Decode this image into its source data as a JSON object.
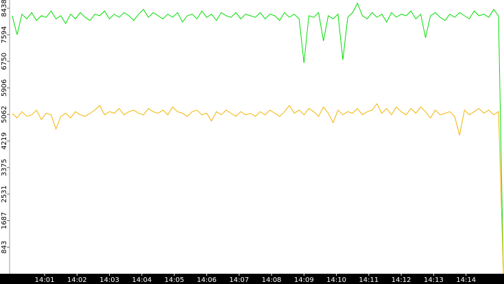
{
  "chart_data": {
    "type": "line",
    "x": [
      0,
      0.15,
      0.3,
      0.45,
      0.6,
      0.75,
      0.9,
      1.05,
      1.2,
      1.35,
      1.5,
      1.65,
      1.8,
      1.95,
      2.1,
      2.25,
      2.4,
      2.55,
      2.7,
      2.85,
      3,
      3.15,
      3.3,
      3.45,
      3.6,
      3.75,
      3.9,
      4.05,
      4.2,
      4.35,
      4.5,
      4.65,
      4.8,
      4.95,
      5.1,
      5.25,
      5.4,
      5.55,
      5.7,
      5.85,
      6,
      6.15,
      6.3,
      6.45,
      6.6,
      6.75,
      6.9,
      7.05,
      7.2,
      7.35,
      7.5,
      7.65,
      7.8,
      7.95,
      8.1,
      8.25,
      8.4,
      8.55,
      8.7,
      8.85,
      9,
      9.15,
      9.3,
      9.45,
      9.6,
      9.75,
      9.9,
      10.05,
      10.2,
      10.35,
      10.5,
      10.65,
      10.8,
      10.95,
      11.1,
      11.25,
      11.4,
      11.55,
      11.7,
      11.85,
      12,
      12.15,
      12.3,
      12.45,
      12.6,
      12.75,
      12.9,
      13.05,
      13.2,
      13.35,
      13.5,
      13.65,
      13.8,
      13.95,
      14.1,
      14.25,
      14.4,
      14.55,
      14.7,
      14.85,
      15,
      15.15
    ],
    "series": [
      {
        "color": "#00dd00",
        "values": [
          8200,
          7600,
          8250,
          8100,
          8300,
          8050,
          8200,
          8150,
          8350,
          8100,
          8200,
          7950,
          8250,
          8100,
          8300,
          8150,
          8050,
          8250,
          8200,
          8350,
          8100,
          8250,
          8150,
          8300,
          8200,
          8050,
          8250,
          8400,
          8150,
          8300,
          8200,
          8100,
          8250,
          8150,
          8300,
          8000,
          8200,
          8250,
          8100,
          8350,
          8150,
          8250,
          8050,
          8300,
          8200,
          8150,
          8300,
          8100,
          8250,
          8200,
          8150,
          8300,
          8100,
          8250,
          8200,
          8050,
          8300,
          8150,
          8250,
          8100,
          6700,
          8200,
          8150,
          8300,
          7400,
          8200,
          8100,
          8250,
          6800,
          8150,
          8300,
          8600,
          8200,
          8100,
          8300,
          8150,
          8250,
          8000,
          8300,
          8150,
          8250,
          8200,
          8350,
          8100,
          8250,
          7500,
          8200,
          8300,
          8150,
          8050,
          8250,
          8150,
          8300,
          8200,
          8100,
          8350,
          8200,
          8250,
          8150,
          8400,
          8200,
          0
        ]
      },
      {
        "color": "#f0b400",
        "values": [
          5100,
          4950,
          5150,
          5000,
          5050,
          5200,
          4900,
          5100,
          5050,
          4600,
          5000,
          5100,
          4950,
          5150,
          5050,
          5000,
          5100,
          5200,
          5350,
          5050,
          5150,
          5100,
          5250,
          5050,
          5150,
          5200,
          5100,
          5050,
          5250,
          5150,
          5100,
          5200,
          5050,
          5300,
          5150,
          5100,
          5000,
          5150,
          5200,
          5050,
          5100,
          4850,
          5150,
          5050,
          5200,
          5100,
          5000,
          5150,
          5050,
          5100,
          5000,
          5150,
          5050,
          5200,
          5100,
          5000,
          5150,
          5350,
          5100,
          5200,
          5050,
          5250,
          5150,
          5000,
          5300,
          5100,
          4800,
          5200,
          5050,
          5150,
          5100,
          5250,
          5050,
          5150,
          5200,
          5400,
          5100,
          5250,
          5050,
          5300,
          5150,
          5050,
          5250,
          5100,
          5300,
          5150,
          4950,
          5200,
          5050,
          5100,
          5150,
          5000,
          4400,
          5200,
          5050,
          5150,
          5250,
          5100,
          5200,
          5050,
          5150,
          0
        ]
      }
    ],
    "xlim": [
      -0.08,
      15.17
    ],
    "xticks": [
      {
        "value": 1,
        "label": "14:01"
      },
      {
        "value": 2,
        "label": "14:02"
      },
      {
        "value": 3,
        "label": "14:03"
      },
      {
        "value": 4,
        "label": "14:04"
      },
      {
        "value": 5,
        "label": "14:05"
      },
      {
        "value": 6,
        "label": "14:06"
      },
      {
        "value": 7,
        "label": "14:07"
      },
      {
        "value": 8,
        "label": "14:08"
      },
      {
        "value": 9,
        "label": "14:09"
      },
      {
        "value": 10,
        "label": "14:10"
      },
      {
        "value": 11,
        "label": "14:11"
      },
      {
        "value": 12,
        "label": "14:12"
      },
      {
        "value": 13,
        "label": "14:13"
      },
      {
        "value": 14,
        "label": "14:14"
      }
    ],
    "ylim": [
      0,
      8700
    ],
    "yticks": [
      843,
      1687,
      2531,
      3375,
      4219,
      5062,
      5906,
      6750,
      7594,
      8438
    ]
  }
}
